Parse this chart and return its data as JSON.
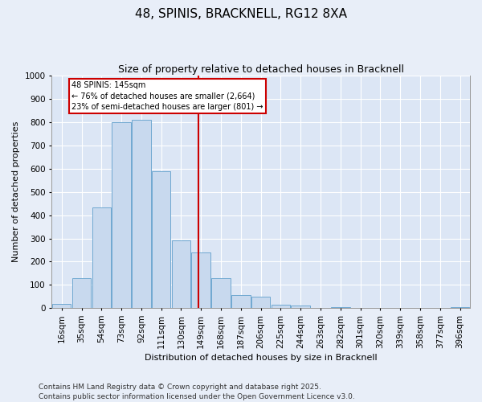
{
  "title": "48, SPINIS, BRACKNELL, RG12 8XA",
  "subtitle": "Size of property relative to detached houses in Bracknell",
  "xlabel": "Distribution of detached houses by size in Bracknell",
  "ylabel": "Number of detached properties",
  "categories": [
    "16sqm",
    "35sqm",
    "54sqm",
    "73sqm",
    "92sqm",
    "111sqm",
    "130sqm",
    "149sqm",
    "168sqm",
    "187sqm",
    "206sqm",
    "225sqm",
    "244sqm",
    "263sqm",
    "282sqm",
    "301sqm",
    "320sqm",
    "339sqm",
    "358sqm",
    "377sqm",
    "396sqm"
  ],
  "values": [
    20,
    130,
    435,
    800,
    810,
    590,
    290,
    240,
    130,
    55,
    50,
    15,
    10,
    0,
    5,
    0,
    0,
    0,
    0,
    0,
    5
  ],
  "bar_color": "#c8d9ee",
  "bar_edge_color": "#6fa8d0",
  "vline_color": "#cc0000",
  "vline_pos": 6.85,
  "annotation_line1": "48 SPINIS: 145sqm",
  "annotation_line2": "← 76% of detached houses are smaller (2,664)",
  "annotation_line3": "23% of semi-detached houses are larger (801) →",
  "annotation_box_color": "#ffffff",
  "annotation_box_edge_color": "#cc0000",
  "ylim": [
    0,
    1000
  ],
  "yticks": [
    0,
    100,
    200,
    300,
    400,
    500,
    600,
    700,
    800,
    900,
    1000
  ],
  "bg_color": "#e8eef8",
  "plot_bg_color": "#dce6f5",
  "grid_color": "#ffffff",
  "footer": "Contains HM Land Registry data © Crown copyright and database right 2025.\nContains public sector information licensed under the Open Government Licence v3.0.",
  "title_fontsize": 11,
  "subtitle_fontsize": 9,
  "label_fontsize": 8,
  "tick_fontsize": 7.5,
  "footer_fontsize": 6.5
}
